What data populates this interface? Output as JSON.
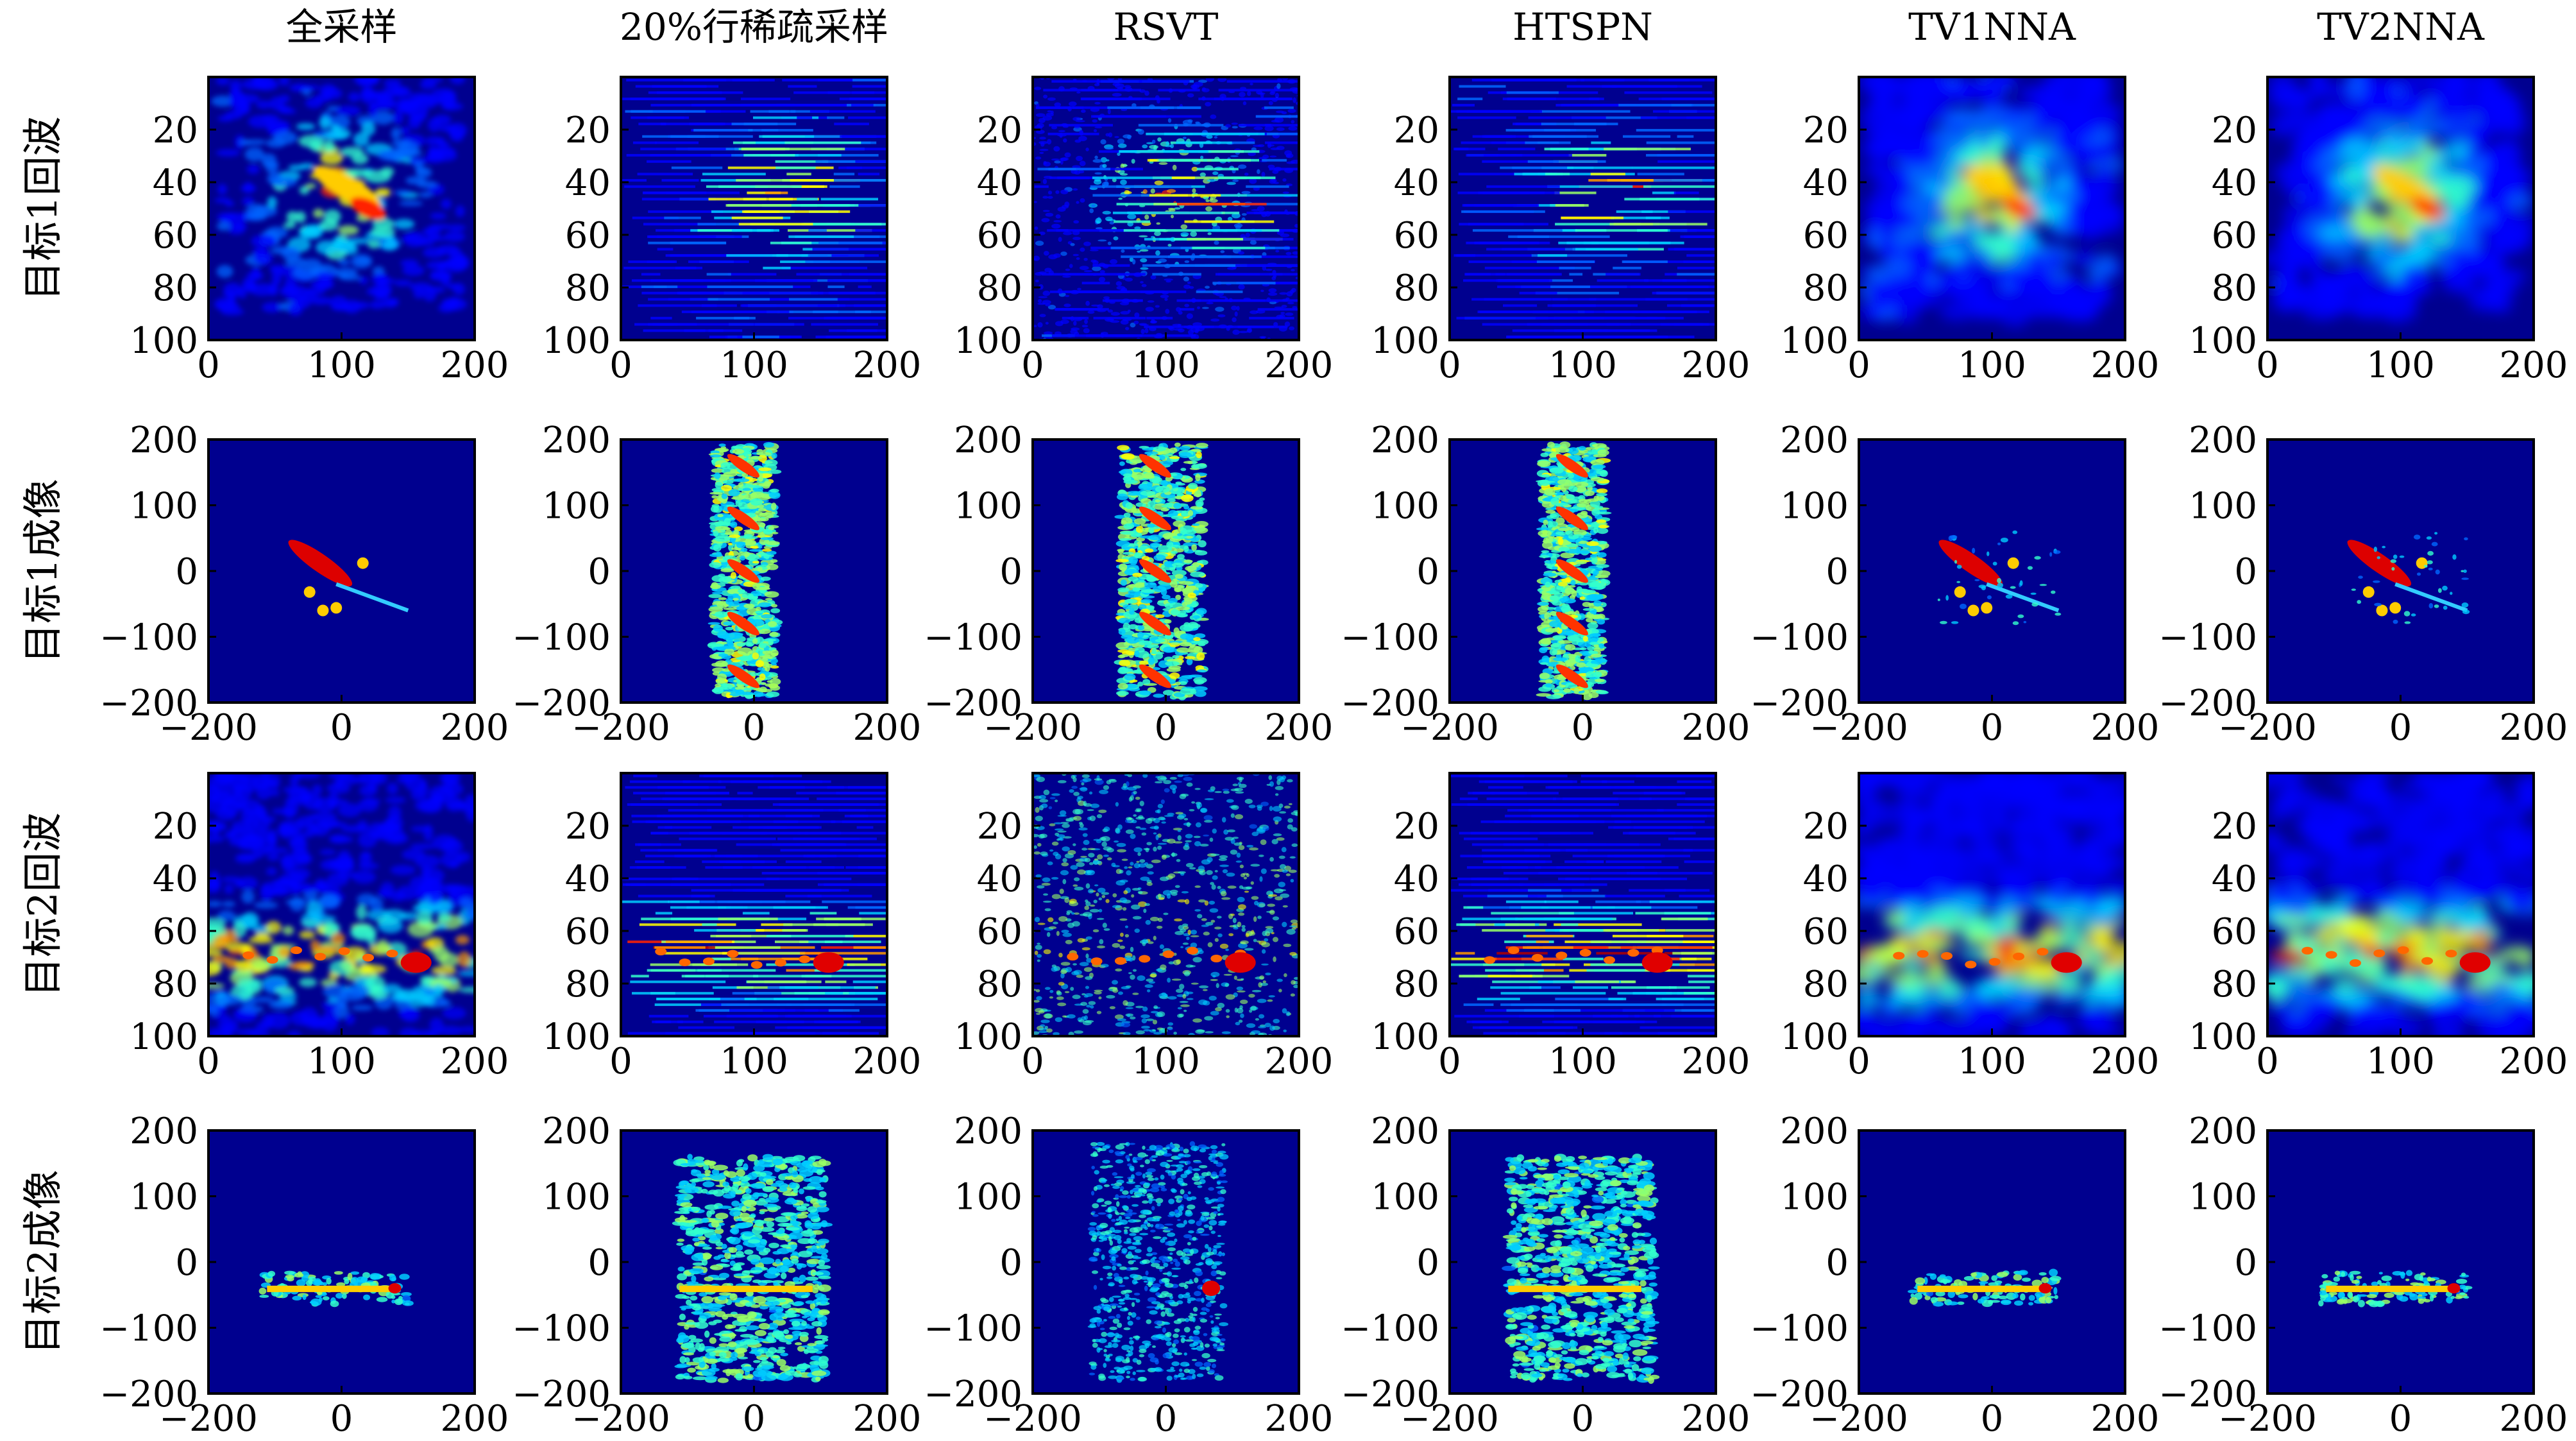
{
  "figure": {
    "columns": [
      "全采样",
      "20%行稀疏采样",
      "RSVT",
      "HTSPN",
      "TV1NNA",
      "TV2NNA"
    ],
    "rows": [
      "目标1回波",
      "目标1成像",
      "目标2回波",
      "目标2成像"
    ]
  },
  "colors": {
    "background": "#00008f",
    "colormap": "jet"
  },
  "chart_data": [
    {
      "type": "heatmap",
      "row": "目标1回波",
      "x_ticks": [
        "0",
        "100",
        "200"
      ],
      "y_ticks": [
        "20",
        "40",
        "60",
        "80",
        "100"
      ],
      "xlim": [
        0,
        200
      ],
      "ylim": [
        100,
        0
      ],
      "panels": [
        "全采样",
        "20%行稀疏采样",
        "RSVT",
        "HTSPN",
        "TV1NNA",
        "TV2NNA"
      ]
    },
    {
      "type": "heatmap",
      "row": "目标1成像",
      "x_ticks": [
        "−200",
        "0",
        "200"
      ],
      "y_ticks": [
        "200",
        "100",
        "0",
        "−100",
        "−200"
      ],
      "xlim": [
        -200,
        200
      ],
      "ylim": [
        -200,
        200
      ],
      "panels": [
        "全采样",
        "20%行稀疏采样",
        "RSVT",
        "HTSPN",
        "TV1NNA",
        "TV2NNA"
      ]
    },
    {
      "type": "heatmap",
      "row": "目标2回波",
      "x_ticks": [
        "0",
        "100",
        "200"
      ],
      "y_ticks": [
        "20",
        "40",
        "60",
        "80",
        "100"
      ],
      "xlim": [
        0,
        200
      ],
      "ylim": [
        100,
        0
      ],
      "panels": [
        "全采样",
        "20%行稀疏采样",
        "RSVT",
        "HTSPN",
        "TV1NNA",
        "TV2NNA"
      ]
    },
    {
      "type": "heatmap",
      "row": "目标2成像",
      "x_ticks": [
        "−200",
        "0",
        "200"
      ],
      "y_ticks": [
        "200",
        "100",
        "0",
        "−100",
        "−200"
      ],
      "xlim": [
        -200,
        200
      ],
      "ylim": [
        -200,
        200
      ],
      "panels": [
        "全采样",
        "20%行稀疏采样",
        "RSVT",
        "HTSPN",
        "TV1NNA",
        "TV2NNA"
      ]
    }
  ]
}
